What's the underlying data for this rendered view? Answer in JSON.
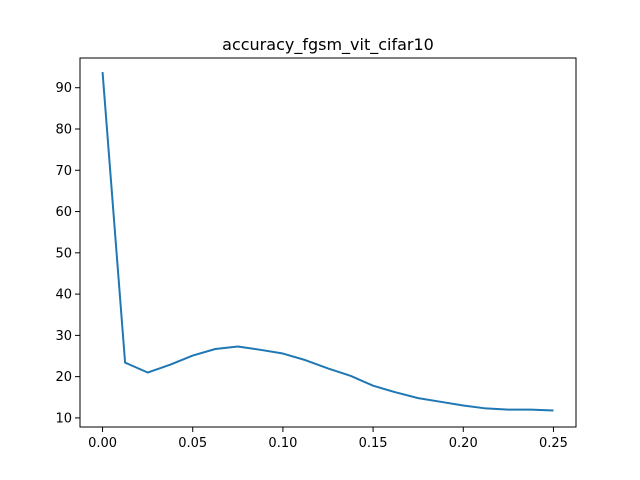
{
  "chart_data": {
    "type": "line",
    "title": "accuracy_fgsm_vit_cifar10",
    "xlabel": "",
    "ylabel": "",
    "xlim": [
      -0.0125,
      0.2625
    ],
    "ylim": [
      7.8,
      97.2
    ],
    "grid": false,
    "x_ticks": [
      0.0,
      0.05,
      0.1,
      0.15,
      0.2,
      0.25
    ],
    "x_tick_labels": [
      "0.00",
      "0.05",
      "0.10",
      "0.15",
      "0.20",
      "0.25"
    ],
    "y_ticks": [
      10,
      20,
      30,
      40,
      50,
      60,
      70,
      80,
      90
    ],
    "y_tick_labels": [
      "10",
      "20",
      "30",
      "40",
      "50",
      "60",
      "70",
      "80",
      "90"
    ],
    "series": [
      {
        "color": "#1f77b4",
        "x": [
          0.0,
          0.0125,
          0.025,
          0.0375,
          0.05,
          0.0625,
          0.075,
          0.0875,
          0.1,
          0.1125,
          0.125,
          0.1375,
          0.15,
          0.1625,
          0.175,
          0.1875,
          0.2,
          0.2125,
          0.225,
          0.2375,
          0.25
        ],
        "y": [
          93.8,
          23.4,
          21.0,
          22.9,
          25.1,
          26.7,
          27.3,
          26.5,
          25.6,
          24.0,
          22.0,
          20.2,
          17.8,
          16.2,
          14.8,
          13.9,
          13.0,
          12.3,
          12.0,
          12.0,
          11.8
        ]
      }
    ]
  }
}
